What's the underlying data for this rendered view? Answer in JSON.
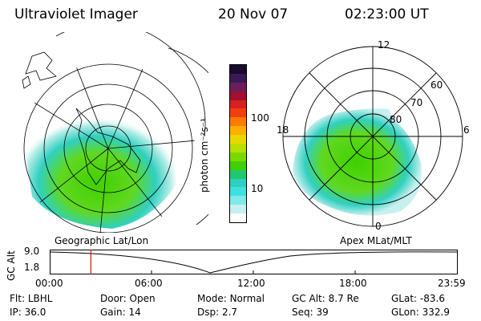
{
  "header": {
    "title": "Ultraviolet Imager",
    "date": "20 Nov 07",
    "time": "02:23:00 UT"
  },
  "colorbar": {
    "label": "photon cm⁻²s⁻¹",
    "ticks": [
      "100",
      "10"
    ],
    "colors": [
      "#1a0a2e",
      "#3a1a55",
      "#6a1f5c",
      "#a01030",
      "#d82020",
      "#f04010",
      "#ff7a00",
      "#ffb000",
      "#e8d800",
      "#b8e000",
      "#7ad800",
      "#40d000",
      "#20c870",
      "#30d0c0",
      "#40e0e0",
      "#80eae8",
      "#c8f0f0",
      "#ffffff"
    ]
  },
  "left_map": {
    "label": "Geographic Lat/Lon"
  },
  "right_map": {
    "label": "Apex  MLat/MLT",
    "mlt_labels": {
      "top": "12",
      "left": "18",
      "right": "6",
      "bottom": "0"
    },
    "lat_labels": [
      "60",
      "70",
      "80"
    ]
  },
  "timeline": {
    "ylabel": "GC Alt",
    "yticks": [
      "9.0",
      "1.8"
    ],
    "xticks": [
      "00:00",
      "06:00",
      "12:00",
      "18:00",
      "23:59"
    ],
    "cursor_time_fraction": 0.0993
  },
  "footer": {
    "row1": [
      {
        "label": "Flt:",
        "value": "LBHL"
      },
      {
        "label": "Door:",
        "value": "Open"
      },
      {
        "label": "Mode:",
        "value": "Normal"
      },
      {
        "label": "GC Alt:",
        "value": "8.7 Re"
      },
      {
        "label": "GLat:",
        "value": "-83.6"
      }
    ],
    "row2": [
      {
        "label": "IP:",
        "value": "36.0"
      },
      {
        "label": "Gain:",
        "value": "14"
      },
      {
        "label": "Dsp:",
        "value": "2.7"
      },
      {
        "label": "Seq:",
        "value": "39"
      },
      {
        "label": "GLon:",
        "value": "332.9"
      }
    ]
  }
}
